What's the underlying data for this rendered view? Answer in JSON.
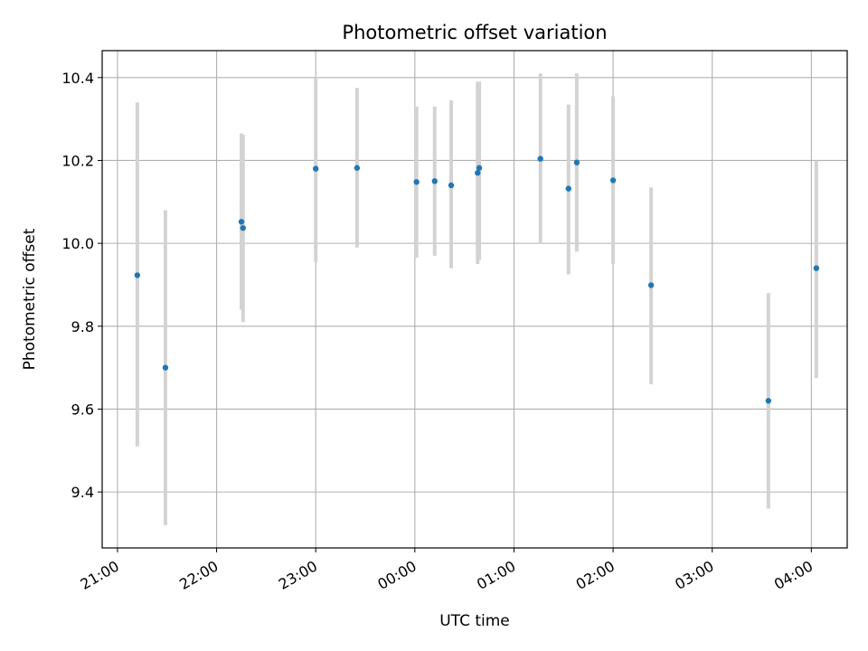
{
  "chart_data": {
    "type": "scatter",
    "title": "Photometric offset variation",
    "xlabel": "UTC time",
    "ylabel": "Photometric offset",
    "x_tick_labels": [
      "21:00",
      "22:00",
      "23:00",
      "00:00",
      "01:00",
      "02:00",
      "03:00",
      "04:00"
    ],
    "y_tick_labels": [
      "9.4",
      "9.6",
      "9.8",
      "10.0",
      "10.2",
      "10.4"
    ],
    "y_ticks": [
      9.4,
      9.6,
      9.8,
      10.0,
      10.2,
      10.4
    ],
    "ylim": [
      9.265,
      10.465
    ],
    "grid": true,
    "point_color": "#1f77b4",
    "errorbar_color": "#d3d3d3",
    "series": [
      {
        "points": [
          {
            "x": "21:12",
            "y": 9.923,
            "low": 9.51,
            "high": 10.34
          },
          {
            "x": "21:29",
            "y": 9.7,
            "low": 9.32,
            "high": 10.08
          },
          {
            "x": "22:15",
            "y": 10.052,
            "low": 9.84,
            "high": 10.265
          },
          {
            "x": "22:16",
            "y": 10.037,
            "low": 9.81,
            "high": 10.262
          },
          {
            "x": "23:00",
            "y": 10.18,
            "low": 9.955,
            "high": 10.4
          },
          {
            "x": "23:25",
            "y": 10.182,
            "low": 9.99,
            "high": 10.375
          },
          {
            "x": "00:01",
            "y": 10.148,
            "low": 9.965,
            "high": 10.33
          },
          {
            "x": "00:12",
            "y": 10.15,
            "low": 9.97,
            "high": 10.33
          },
          {
            "x": "00:22",
            "y": 10.14,
            "low": 9.94,
            "high": 10.345
          },
          {
            "x": "00:38",
            "y": 10.17,
            "low": 9.95,
            "high": 10.39
          },
          {
            "x": "00:39",
            "y": 10.182,
            "low": 9.96,
            "high": 10.39
          },
          {
            "x": "01:16",
            "y": 10.204,
            "low": 10.0,
            "high": 10.41
          },
          {
            "x": "01:33",
            "y": 10.132,
            "low": 9.925,
            "high": 10.335
          },
          {
            "x": "01:38",
            "y": 10.195,
            "low": 9.98,
            "high": 10.41
          },
          {
            "x": "02:00",
            "y": 10.152,
            "low": 9.95,
            "high": 10.355
          },
          {
            "x": "02:23",
            "y": 9.899,
            "low": 9.66,
            "high": 10.135
          },
          {
            "x": "03:34",
            "y": 9.62,
            "low": 9.36,
            "high": 9.88
          },
          {
            "x": "04:03",
            "y": 9.94,
            "low": 9.675,
            "high": 10.2
          }
        ]
      }
    ]
  }
}
